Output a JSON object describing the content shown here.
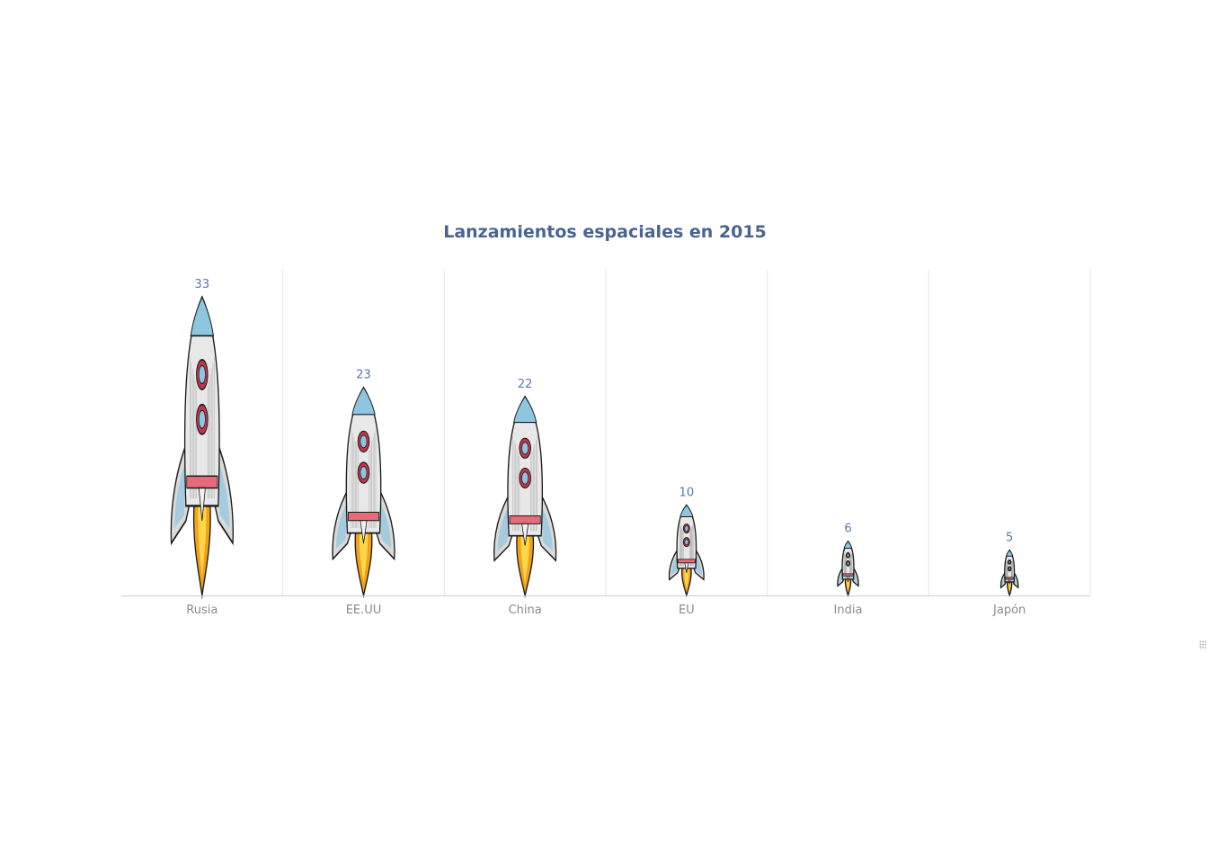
{
  "chart_data": {
    "type": "bar",
    "mark": "rocket-pictogram",
    "title": "Lanzamientos espaciales en 2015",
    "xlabel": "",
    "ylabel": "",
    "categories": [
      "Rusia",
      "EE.UU",
      "China",
      "EU",
      "India",
      "Japón"
    ],
    "values": [
      33,
      23,
      22,
      10,
      6,
      5
    ],
    "ylim": [
      0,
      36
    ],
    "grid": "vertical",
    "legend": "none",
    "colors": {
      "title": "#4a6491",
      "value_label": "#5a78a8",
      "tick_label": "#8a8a8a",
      "gridline": "#e6e6e6",
      "axis_line": "#cccccc",
      "rocket_body": "#e8e8e8",
      "rocket_nose": "#8ec6e0",
      "rocket_window": "#c0354d",
      "rocket_band": "#e46b7a",
      "flame_outer": "#f2a219",
      "flame_inner": "#ffd54a",
      "outline": "#1a1a1a"
    }
  }
}
